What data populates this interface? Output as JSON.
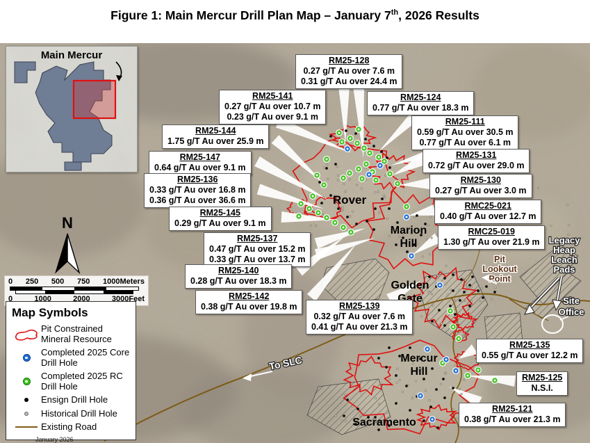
{
  "figure": {
    "title_prefix": "Figure 1: Main Mercur Drill Plan Map – January 7",
    "title_sup": "th",
    "title_suffix": ", 2026 Results"
  },
  "inset": {
    "label": "Main Mercur"
  },
  "north": {
    "label": "N"
  },
  "scale_bar": {
    "meters_labels": [
      "0",
      "250",
      "500",
      "750",
      "1000Meters"
    ],
    "feet_labels": [
      "0",
      "1000",
      "2000",
      "3000Feet"
    ]
  },
  "legend": {
    "title": "Map Symbols",
    "items": [
      {
        "icon": "pit-outline-icon",
        "label": "Pit Constrained Mineral Resource"
      },
      {
        "icon": "core-drill-hole-icon",
        "label": "Completed 2025 Core Drill Hole"
      },
      {
        "icon": "rc-drill-hole-icon",
        "label": "Completed 2025 RC Drill Hole"
      },
      {
        "icon": "ensign-drill-hole-icon",
        "label": "Ensign Drill Hole"
      },
      {
        "icon": "historical-drill-hole-icon",
        "label": "Historical Drill Hole"
      },
      {
        "icon": "existing-road-icon",
        "label": "Existing Road"
      }
    ],
    "date": "January 2026"
  },
  "map_labels": {
    "rover": [
      "Rover"
    ],
    "marion_hill": [
      "Marion",
      "Hill"
    ],
    "golden_gate": [
      "Golden",
      "Gate"
    ],
    "mercur_hill": [
      "Mercur",
      "Hill"
    ],
    "sacramento": [
      "Sacramento"
    ],
    "pit_lookout": [
      "Pit",
      "Lookout",
      "Point"
    ],
    "legacy_pads": [
      "Legacy",
      "Heap",
      "Leach",
      "Pads"
    ],
    "site_office": [
      "Site",
      "Office"
    ],
    "to_slc": [
      "To SLC"
    ]
  },
  "callouts": [
    {
      "id": "RM25-128",
      "results": [
        "0.27 g/T Au over 7.6 m",
        "0.31 g/T Au over 24.4 m"
      ]
    },
    {
      "id": "RM25-141",
      "results": [
        "0.27 g/T Au over 10.7 m",
        "0.23 g/T Au over 9.1 m"
      ]
    },
    {
      "id": "RM25-124",
      "results": [
        "0.77 g/T Au over 18.3 m"
      ]
    },
    {
      "id": "RM25-144",
      "results": [
        "1.75 g/T Au over 25.9 m"
      ]
    },
    {
      "id": "RM25-111",
      "results": [
        "0.59 g/T Au over 30.5 m",
        "0.77 g/T Au over 6.1 m"
      ]
    },
    {
      "id": "RM25-147",
      "results": [
        "0.64 g/T Au over 9.1 m"
      ]
    },
    {
      "id": "RM25-131",
      "results": [
        "0.72 g/T Au over 29.0 m"
      ]
    },
    {
      "id": "RM25-136",
      "results": [
        "0.33 g/T Au over 16.8 m",
        "0.36 g/T Au over 36.6 m"
      ]
    },
    {
      "id": "RM25-130",
      "results": [
        "0.27 g/T Au over 3.0 m"
      ]
    },
    {
      "id": "RM25-145",
      "results": [
        "0.29 g/T Au over 9.1 m"
      ]
    },
    {
      "id": "RMC25-021",
      "results": [
        "0.40 g/T Au over 12.7 m"
      ]
    },
    {
      "id": "RM25-137",
      "results": [
        "0.47 g/T Au over 15.2 m",
        "0.33 g/T Au over 13.7 m"
      ]
    },
    {
      "id": "RMC25-019",
      "results": [
        "1.30 g/T Au over 21.9 m"
      ]
    },
    {
      "id": "RM25-140",
      "results": [
        "0.28 g/T Au over 18.3 m"
      ]
    },
    {
      "id": "RM25-142",
      "results": [
        "0.38 g/T Au over 19.8 m"
      ]
    },
    {
      "id": "RM25-139",
      "results": [
        "0.32 g/T Au over 7.6 m",
        "0.41 g/T Au over 21.3 m"
      ]
    },
    {
      "id": "RM25-135",
      "results": [
        "0.55 g/T Au over 12.2 m"
      ]
    },
    {
      "id": "RM25-125",
      "results": [
        "N.S.I."
      ]
    },
    {
      "id": "RM25-121",
      "results": [
        "0.38 g/T Au over 21.3 m"
      ]
    }
  ],
  "colors": {
    "pit_outline": "#e01010",
    "core_hole": "#1f6fd6",
    "rc_hole": "#3ec41e",
    "road": "#7d5c16",
    "terrain": "#b6ac9a"
  }
}
